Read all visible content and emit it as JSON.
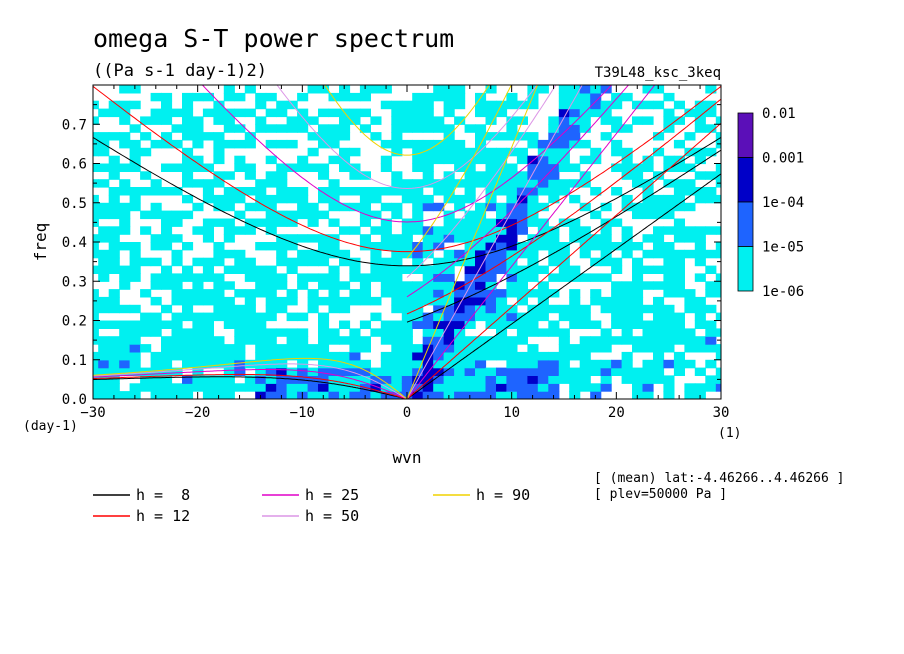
{
  "chart_data": {
    "type": "heatmap",
    "title": "omega S-T power spectrum",
    "subtitle": "((Pa s-1 day-1)2)",
    "run_label": "T39L48_ksc_3keq",
    "xlabel": "wvn",
    "ylabel": "freq",
    "x_unit": "(1)",
    "y_unit": "(day-1)",
    "xlim": [
      -30,
      30
    ],
    "ylim": [
      0,
      0.8
    ],
    "x_ticks": [
      -30,
      -20,
      -10,
      0,
      10,
      20,
      30
    ],
    "y_ticks": [
      0.0,
      0.1,
      0.2,
      0.3,
      0.4,
      0.5,
      0.6,
      0.7
    ],
    "colorbar": {
      "levels": [
        "0.01",
        "0.001",
        "1e-04",
        "1e-05",
        "1e-06"
      ],
      "colors": [
        "#5b0fb8",
        "#0000c8",
        "#1e64ff",
        "#00f0f0"
      ]
    },
    "dispersion_curves": [
      {
        "name": "h =  8",
        "h": 8,
        "color": "#000000"
      },
      {
        "name": "h = 12",
        "h": 12,
        "color": "#ff0000"
      },
      {
        "name": "h = 25",
        "h": 25,
        "color": "#e000c8"
      },
      {
        "name": "h = 50",
        "h": 50,
        "color": "#dc96e6"
      },
      {
        "name": "h = 90",
        "h": 90,
        "color": "#f0d200"
      }
    ],
    "notes": [
      "[ (mean) lat:-4.46266..4.46266 ]",
      "[ plev=50000 Pa ]"
    ]
  }
}
